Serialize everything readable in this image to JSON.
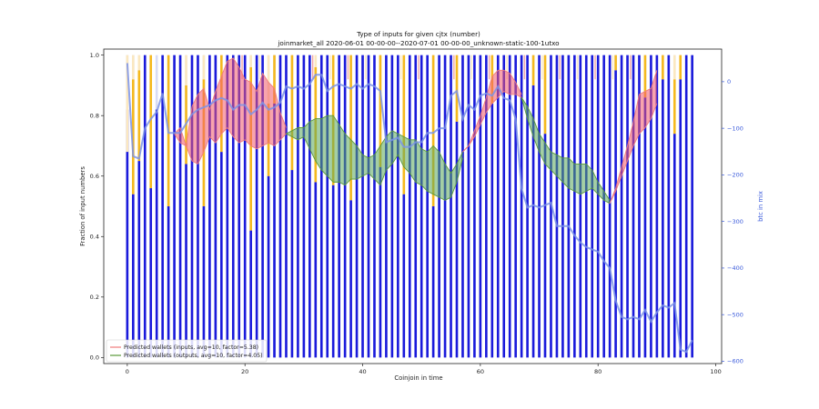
{
  "chart_data": {
    "type": "bar",
    "title": "Type of inputs for given cjtx (number)",
    "subtitle": "joinmarket_all 2020-06-01 00-00-00--2020-07-01 00-00-00_unknown-static-100-1utxo",
    "xlabel": "Coinjoin in time",
    "ylabel": "Fraction of input numbers",
    "y2label": "btc in mix",
    "xlim": [
      -4,
      101
    ],
    "ylim": [
      -0.02,
      1.02
    ],
    "y2lim": [
      -605,
      70
    ],
    "x_ticks": [
      0,
      20,
      40,
      60,
      80,
      100
    ],
    "y_ticks": [
      0.0,
      0.2,
      0.4,
      0.6,
      0.8,
      1.0
    ],
    "y2_ticks": [
      0,
      -100,
      -200,
      -300,
      -400,
      -500,
      -600
    ],
    "x_tick_labels": [
      "0",
      "20",
      "40",
      "60",
      "80",
      "100"
    ],
    "y_tick_labels": [
      "0.0",
      "0.2",
      "0.4",
      "0.6",
      "0.8",
      "1.0"
    ],
    "y2_tick_labels": [
      "0",
      "−100",
      "−200",
      "−300",
      "−400",
      "−500",
      "−600"
    ],
    "colors": {
      "blue_bar": "#1a1adb",
      "lightblue_bar": "#d8dcf5",
      "orange_bar": "#f5b91e",
      "cream_bar": "#fbe8c0",
      "pink_bar": "#f0a8a8",
      "inputs_line": "#f07c7c",
      "inputs_fill": "#f25a6a",
      "outputs_line": "#5a9a3a",
      "outputs_fill": "#5aa85a",
      "mix_line": "#7b93e8",
      "right_axis": "#3b5bdb"
    },
    "bars": {
      "blue_fraction": [
        0.82,
        0.54,
        0.65,
        1.0,
        0.56,
        0.82,
        1.0,
        0.5,
        1.0,
        1.0,
        0.64,
        1.0,
        1.0,
        0.5,
        1.0,
        1.0,
        0.68,
        1.0,
        1.0,
        1.0,
        1.0,
        0.42,
        1.0,
        1.0,
        0.6,
        0.84,
        1.0,
        1.0,
        0.62,
        1.0,
        1.0,
        1.0,
        0.58,
        1.0,
        1.0,
        0.57,
        1.0,
        1.0,
        0.52,
        1.0,
        1.0,
        1.0,
        1.0,
        0.63,
        1.0,
        1.0,
        1.0,
        0.54,
        1.0,
        1.0,
        1.0,
        1.0,
        0.5,
        1.0,
        1.0,
        1.0,
        0.78,
        1.0,
        1.0,
        1.0,
        1.0,
        1.0,
        0.84,
        1.0,
        1.0,
        1.0,
        1.0,
        1.0,
        1.0,
        0.9,
        1.0,
        0.74,
        1.0,
        1.0,
        1.0,
        1.0,
        1.0,
        1.0,
        1.0,
        1.0,
        1.0,
        1.0,
        1.0,
        0.95,
        1.0,
        1.0,
        1.0,
        1.0,
        0.86,
        1.0,
        1.0,
        0.92,
        1.0,
        0.74,
        0.92,
        1.0,
        1.0
      ],
      "orange_top": [
        0.68,
        0.92,
        0.95,
        0.0,
        1.0,
        0.0,
        0.0,
        1.0,
        0.0,
        0.0,
        0.9,
        0.0,
        0.0,
        0.92,
        0.0,
        0.0,
        1.0,
        0.0,
        0.0,
        0.0,
        0.0,
        0.96,
        0.0,
        0.0,
        0.84,
        1.0,
        0.0,
        0.0,
        1.0,
        0.0,
        0.0,
        0.0,
        0.96,
        0.0,
        0.0,
        1.0,
        0.0,
        0.0,
        1.0,
        0.0,
        0.0,
        0.0,
        0.0,
        1.0,
        0.0,
        0.0,
        0.0,
        1.0,
        0.0,
        0.0,
        0.0,
        0.0,
        1.0,
        0.0,
        0.0,
        0.0,
        1.0,
        0.0,
        0.0,
        0.0,
        0.0,
        0.0,
        1.0,
        0.0,
        0.0,
        0.0,
        0.0,
        0.0,
        0.0,
        1.0,
        0.0,
        1.0,
        0.0,
        0.0,
        0.0,
        0.0,
        0.0,
        0.0,
        0.0,
        0.0,
        0.0,
        0.0,
        0.0,
        1.0,
        0.0,
        0.0,
        0.0,
        0.0,
        1.0,
        0.0,
        0.0,
        1.0,
        0.0,
        0.92,
        1.0,
        0.0,
        0.0
      ]
    },
    "series": [
      {
        "name": "Predicted wallets (inputs, avg=10, factor=5.38)",
        "x": [
          8,
          9,
          10,
          11,
          12,
          13,
          14,
          15,
          16,
          17,
          18,
          19,
          20,
          21,
          22,
          23,
          24,
          25,
          26,
          27
        ],
        "upper": [
          0.74,
          0.76,
          0.7,
          0.83,
          0.87,
          0.89,
          0.82,
          0.88,
          0.93,
          0.98,
          0.99,
          0.96,
          0.92,
          0.91,
          0.88,
          0.94,
          0.91,
          0.89,
          0.81,
          0.76
        ],
        "lower": [
          0.74,
          0.71,
          0.7,
          0.65,
          0.64,
          0.68,
          0.73,
          0.71,
          0.74,
          0.76,
          0.73,
          0.71,
          0.72,
          0.7,
          0.69,
          0.7,
          0.71,
          0.7,
          0.72,
          0.74
        ]
      },
      {
        "name": "Predicted wallets (outputs, avg=10, factor=4.05)",
        "x": [
          27,
          28,
          29,
          30,
          31,
          32,
          33,
          34,
          35,
          36,
          37,
          38,
          39,
          40,
          41,
          42,
          43,
          44,
          45,
          46,
          47,
          48,
          49,
          50,
          51,
          52,
          53,
          54,
          55,
          56,
          57
        ],
        "upper": [
          0.74,
          0.75,
          0.76,
          0.76,
          0.78,
          0.79,
          0.79,
          0.8,
          0.8,
          0.77,
          0.74,
          0.72,
          0.7,
          0.67,
          0.66,
          0.67,
          0.7,
          0.73,
          0.75,
          0.74,
          0.73,
          0.72,
          0.72,
          0.69,
          0.68,
          0.7,
          0.68,
          0.64,
          0.61,
          0.64,
          0.68
        ],
        "lower": [
          0.74,
          0.73,
          0.72,
          0.73,
          0.69,
          0.65,
          0.62,
          0.6,
          0.58,
          0.58,
          0.57,
          0.59,
          0.59,
          0.6,
          0.61,
          0.59,
          0.57,
          0.62,
          0.64,
          0.67,
          0.63,
          0.61,
          0.58,
          0.57,
          0.55,
          0.54,
          0.53,
          0.52,
          0.53,
          0.58,
          0.66
        ]
      }
    ],
    "extra_input_band": {
      "x": [
        57,
        58,
        59,
        60,
        61,
        62,
        63,
        64,
        65,
        66,
        67
      ],
      "upper": [
        0.68,
        0.7,
        0.75,
        0.8,
        0.86,
        0.93,
        0.95,
        0.95,
        0.94,
        0.91,
        0.87
      ],
      "lower": [
        0.68,
        0.7,
        0.73,
        0.77,
        0.81,
        0.84,
        0.86,
        0.88,
        0.87,
        0.87,
        0.86
      ]
    },
    "extra_output_band": {
      "x": [
        67,
        68,
        69,
        70,
        71,
        72,
        73,
        74,
        75,
        76,
        77,
        78,
        79,
        80,
        81,
        82
      ],
      "upper": [
        0.86,
        0.83,
        0.79,
        0.74,
        0.71,
        0.68,
        0.67,
        0.66,
        0.66,
        0.64,
        0.64,
        0.64,
        0.62,
        0.58,
        0.55,
        0.52
      ],
      "lower": [
        0.86,
        0.79,
        0.73,
        0.68,
        0.64,
        0.62,
        0.6,
        0.58,
        0.56,
        0.55,
        0.54,
        0.55,
        0.56,
        0.54,
        0.52,
        0.51
      ]
    },
    "extra_input_band2": {
      "x": [
        82,
        83,
        84,
        85,
        86,
        87,
        88,
        89,
        90
      ],
      "upper": [
        0.51,
        0.56,
        0.63,
        0.7,
        0.78,
        0.87,
        0.88,
        0.89,
        0.95
      ],
      "lower": [
        0.51,
        0.55,
        0.6,
        0.65,
        0.7,
        0.74,
        0.76,
        0.79,
        0.84
      ]
    },
    "mix_line": {
      "x": [
        0,
        1,
        2,
        3,
        4,
        5,
        6,
        7,
        8,
        9,
        10,
        11,
        12,
        13,
        14,
        15,
        16,
        17,
        18,
        19,
        20,
        21,
        22,
        23,
        24,
        25,
        26,
        27,
        28,
        29,
        30,
        31,
        32,
        33,
        34,
        35,
        36,
        37,
        38,
        39,
        40,
        41,
        42,
        43,
        44,
        45,
        46,
        47,
        48,
        49,
        50,
        51,
        52,
        53,
        54,
        55,
        56,
        57,
        58,
        59,
        60,
        61,
        62,
        63,
        64,
        65,
        66,
        67,
        68,
        69,
        70,
        71,
        72,
        73,
        74,
        75,
        76,
        77,
        78,
        79,
        80,
        81,
        82,
        83,
        84,
        85,
        86,
        87,
        88,
        89,
        90,
        91,
        92,
        93,
        94,
        95,
        96
      ],
      "y": [
        40,
        -160,
        -165,
        -100,
        -80,
        -65,
        -25,
        -110,
        -110,
        -110,
        -90,
        -70,
        -60,
        -55,
        -50,
        -40,
        -35,
        -40,
        -60,
        -50,
        -50,
        -70,
        -60,
        -45,
        -60,
        -55,
        -45,
        -10,
        -15,
        -10,
        -15,
        -5,
        15,
        15,
        -20,
        -10,
        -5,
        -10,
        -15,
        -5,
        -15,
        -5,
        -10,
        -20,
        -130,
        -125,
        -120,
        -140,
        -140,
        -130,
        -130,
        -110,
        -110,
        -100,
        -100,
        -30,
        -20,
        -80,
        -50,
        -60,
        -30,
        -25,
        -30,
        -10,
        -35,
        -40,
        -80,
        -230,
        -270,
        -265,
        -270,
        -265,
        -260,
        -310,
        -310,
        -310,
        -330,
        -345,
        -355,
        -360,
        -365,
        -385,
        -400,
        -470,
        -505,
        -510,
        -505,
        -510,
        -490,
        -515,
        -495,
        -480,
        -485,
        -475,
        -575,
        -580,
        -555
      ]
    },
    "legend": [
      "Predicted wallets (inputs, avg=10, factor=5.38)",
      "Predicted wallets (outputs, avg=10, factor=4.05)"
    ],
    "legend_position": "lower-left",
    "grid": false
  }
}
